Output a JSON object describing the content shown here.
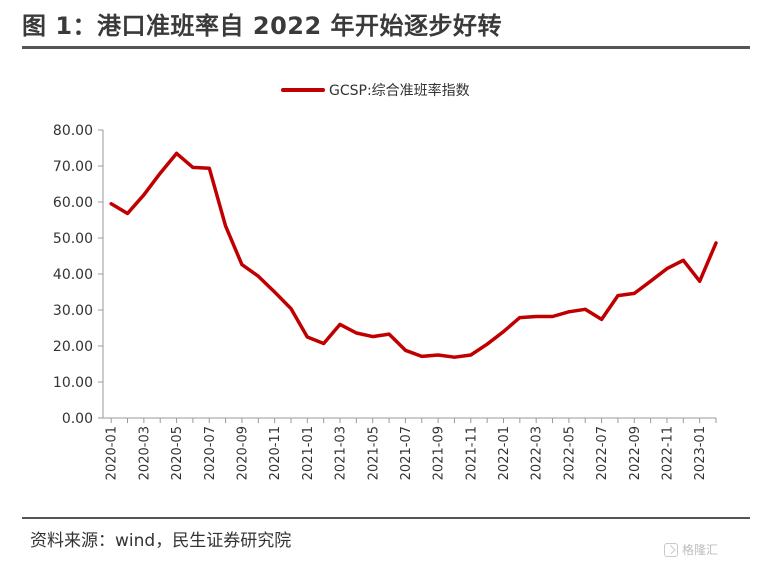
{
  "figure_title": "图 1：港口准班率自 2022 年开始逐步好转",
  "source_note": "资料来源：wind，民生证券研究院",
  "watermark_text": "格隆汇",
  "colors": {
    "series": "#c00000",
    "axis": "#999999",
    "text": "#333333"
  },
  "chart_data": {
    "type": "line",
    "title": "",
    "xlabel": "",
    "ylabel": "",
    "ylim": [
      0,
      80
    ],
    "yticks": [
      "0.00",
      "10.00",
      "20.00",
      "30.00",
      "40.00",
      "50.00",
      "60.00",
      "70.00",
      "80.00"
    ],
    "xticks": [
      "2020-01",
      "2020-03",
      "2020-05",
      "2020-07",
      "2020-09",
      "2020-11",
      "2021-01",
      "2021-03",
      "2021-05",
      "2021-07",
      "2021-09",
      "2021-11",
      "2022-01",
      "2022-03",
      "2022-05",
      "2022-07",
      "2022-09",
      "2022-11",
      "2023-01"
    ],
    "grid": false,
    "legend_position": "top-center",
    "series": [
      {
        "name": "GCSP:综合准班率指数",
        "color": "#c00000",
        "x": [
          "2020-01",
          "2020-02",
          "2020-03",
          "2020-04",
          "2020-05",
          "2020-06",
          "2020-07",
          "2020-08",
          "2020-09",
          "2020-10",
          "2020-11",
          "2020-12",
          "2021-01",
          "2021-02",
          "2021-03",
          "2021-04",
          "2021-05",
          "2021-06",
          "2021-07",
          "2021-08",
          "2021-09",
          "2021-10",
          "2021-11",
          "2021-12",
          "2022-01",
          "2022-02",
          "2022-03",
          "2022-04",
          "2022-05",
          "2022-06",
          "2022-07",
          "2022-08",
          "2022-09",
          "2022-10",
          "2022-11",
          "2022-12",
          "2023-01",
          "2023-02"
        ],
        "values": [
          59.5,
          56.8,
          62.0,
          68.0,
          73.5,
          69.6,
          69.4,
          53.3,
          42.6,
          39.4,
          35.0,
          30.4,
          22.5,
          20.7,
          26.0,
          23.6,
          22.6,
          23.3,
          18.8,
          17.1,
          17.5,
          16.9,
          17.5,
          20.5,
          24.0,
          27.9,
          28.2,
          28.2,
          29.5,
          30.2,
          27.4,
          34.0,
          34.6,
          38.0,
          41.5,
          43.8,
          38.0,
          48.6
        ]
      }
    ]
  }
}
